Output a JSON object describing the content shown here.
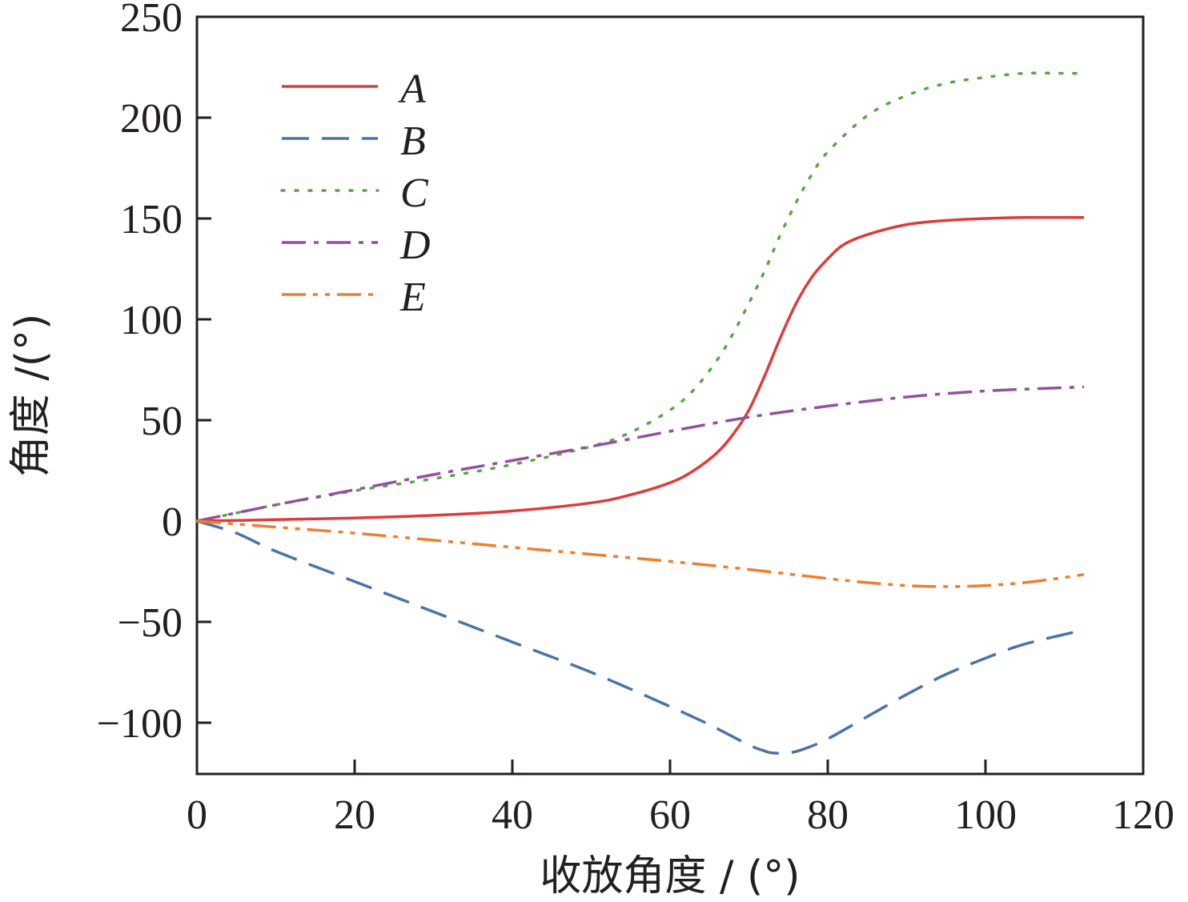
{
  "chart_data": {
    "type": "line",
    "xlabel": "收放角度 / (°)",
    "ylabel": "角度 /(°)",
    "xlim": [
      0,
      120
    ],
    "ylim": [
      -125,
      250
    ],
    "xticks": [
      "0",
      "20",
      "40",
      "60",
      "80",
      "100",
      "120"
    ],
    "yticks": [
      "−100",
      "−50",
      "0",
      "50",
      "100",
      "150",
      "200",
      "250"
    ],
    "grid": false,
    "legend_position": "top-left",
    "series": [
      {
        "name": "A",
        "color": "#e03a3a",
        "dash": "solid",
        "x": [
          0,
          5,
          10,
          20,
          30,
          40,
          50,
          55,
          60,
          63,
          66,
          68,
          70,
          72,
          74,
          76,
          78,
          80,
          82,
          85,
          90,
          95,
          100,
          105,
          112.5
        ],
        "y": [
          0,
          0.3,
          0.7,
          1.5,
          2.8,
          5,
          9,
          13,
          19,
          25,
          34,
          43,
          55,
          72,
          91,
          108,
          121,
          130,
          137,
          142,
          147,
          149,
          150,
          150.5,
          150.5
        ]
      },
      {
        "name": "B",
        "color": "#4a74a8",
        "dash": "long-dash",
        "x": [
          0,
          5,
          10,
          20,
          30,
          40,
          50,
          60,
          65,
          70,
          72,
          73,
          75,
          77,
          80,
          85,
          90,
          95,
          100,
          105,
          112.5
        ],
        "y": [
          0,
          -6,
          -15,
          -30,
          -45,
          -60,
          -75,
          -92,
          -101,
          -111,
          -114,
          -115,
          -115,
          -113,
          -108,
          -97,
          -86,
          -76,
          -68,
          -61,
          -54
        ]
      },
      {
        "name": "C",
        "color": "#56a845",
        "dash": "dotted",
        "x": [
          0,
          5,
          10,
          20,
          30,
          40,
          50,
          55,
          60,
          63,
          66,
          68,
          70,
          72,
          74,
          76,
          78,
          80,
          85,
          90,
          95,
          100,
          105,
          110,
          112
        ],
        "y": [
          0,
          4,
          8,
          15,
          21,
          28,
          37,
          44,
          55,
          65,
          80,
          93,
          108,
          124,
          142,
          158,
          172,
          183,
          201,
          211,
          217,
          220,
          222,
          222,
          222
        ]
      },
      {
        "name": "D",
        "color": "#94509f",
        "dash": "dash-dot",
        "x": [
          0,
          10,
          20,
          30,
          40,
          50,
          60,
          70,
          80,
          90,
          100,
          112.5
        ],
        "y": [
          0,
          8,
          15.5,
          23,
          30,
          37,
          44.5,
          51.5,
          57,
          61.5,
          64.5,
          66.5
        ]
      },
      {
        "name": "E",
        "color": "#ef7e2e",
        "dash": "dash-dot-dot",
        "x": [
          0,
          10,
          20,
          30,
          40,
          50,
          60,
          70,
          80,
          85,
          90,
          95,
          100,
          105,
          110,
          112.5
        ],
        "y": [
          0,
          -3,
          -6,
          -9.5,
          -13,
          -16.5,
          -20,
          -24,
          -28.5,
          -30.5,
          -32,
          -32.5,
          -32,
          -30.5,
          -28,
          -26.5
        ]
      }
    ]
  }
}
